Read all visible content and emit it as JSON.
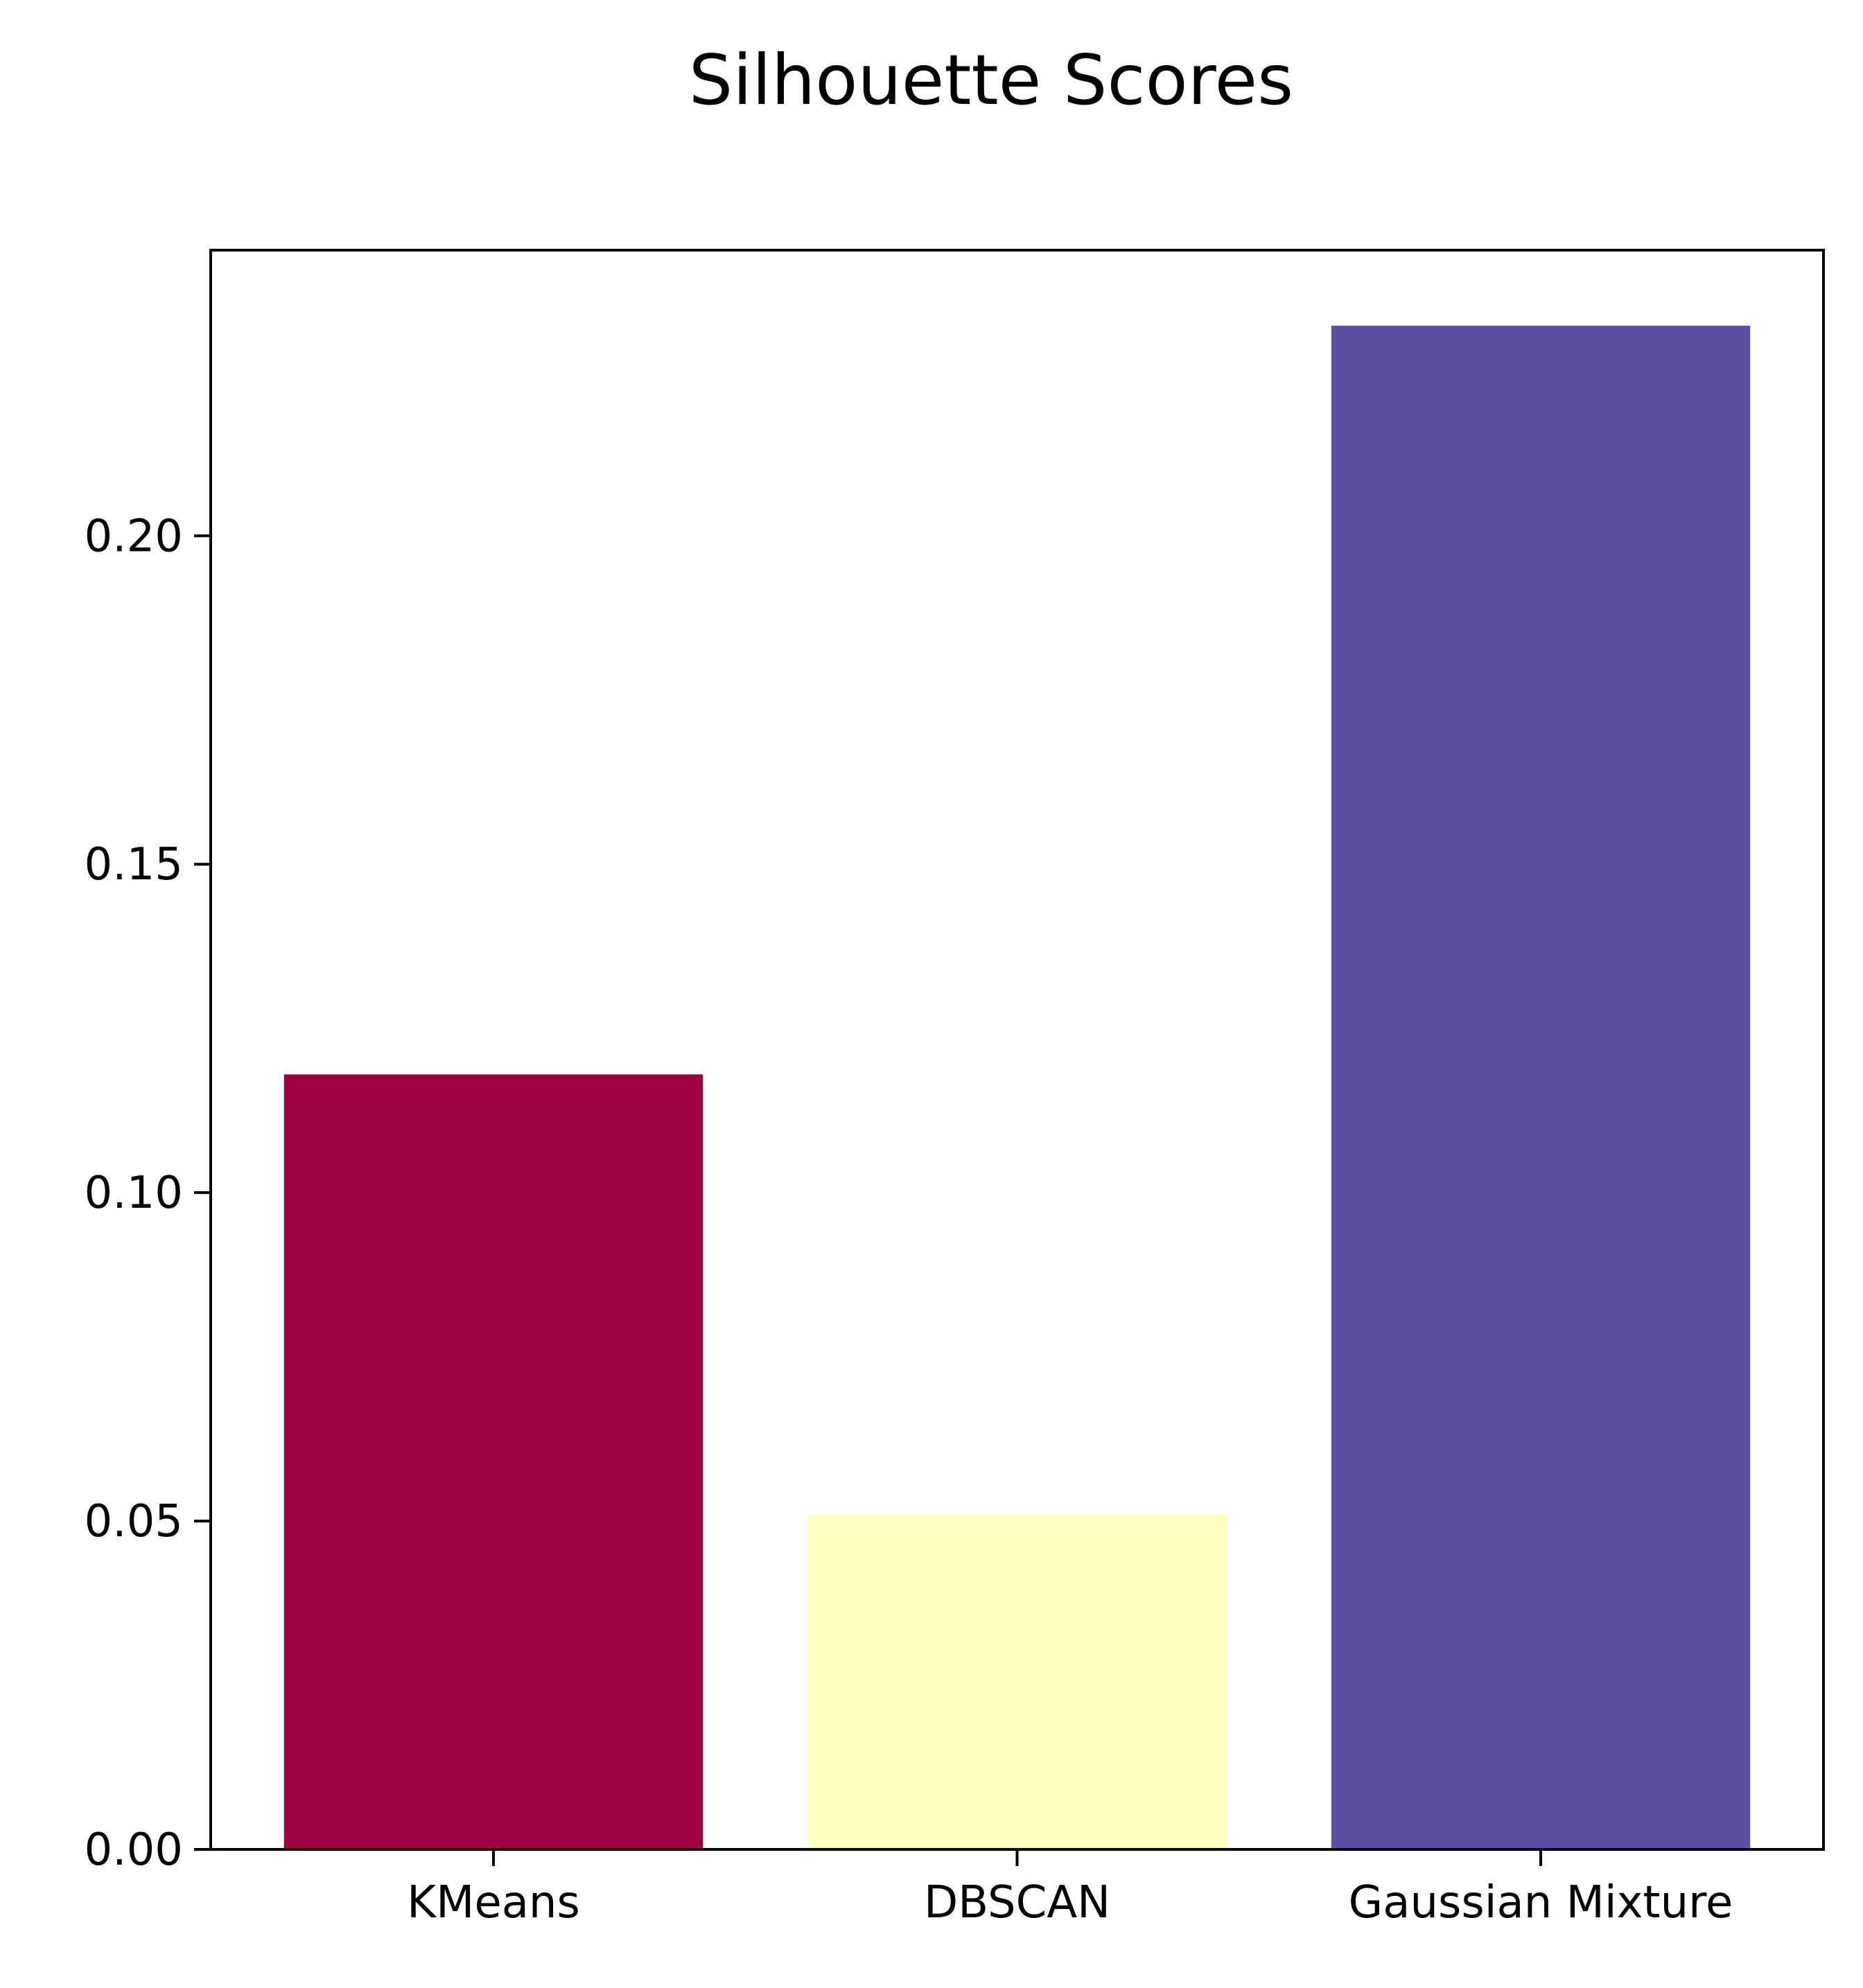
{
  "chart_data": {
    "type": "bar",
    "title": "Silhouette Scores",
    "xlabel": "",
    "ylabel": "",
    "categories": [
      "KMeans",
      "DBSCAN",
      "Gaussian Mixture"
    ],
    "values": [
      0.118,
      0.051,
      0.232
    ],
    "colors": [
      "#9e0142",
      "#ffffbf",
      "#5e4fa2"
    ],
    "ylim": [
      0,
      0.2435
    ],
    "yticks": [
      0.0,
      0.05,
      0.1,
      0.15,
      0.2
    ],
    "ytick_labels": [
      "0.00",
      "0.05",
      "0.10",
      "0.15",
      "0.20"
    ],
    "grid": false,
    "legend": false
  }
}
